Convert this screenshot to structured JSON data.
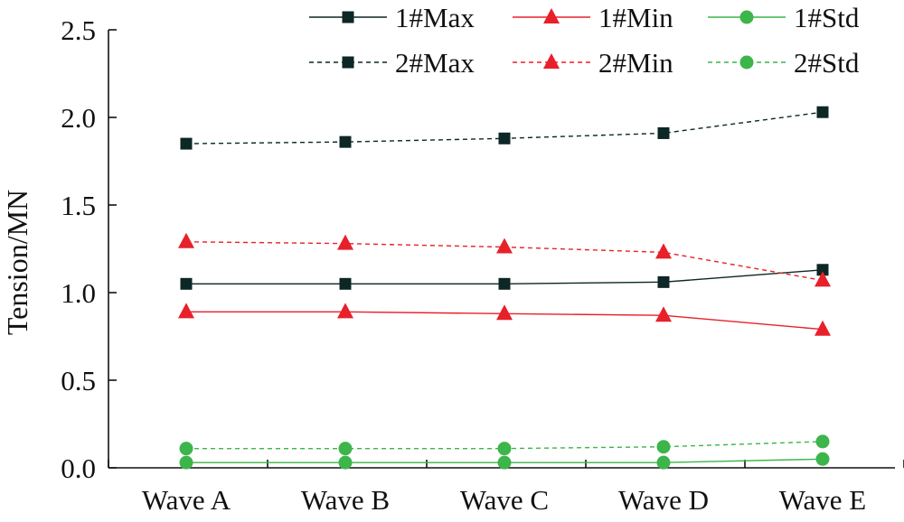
{
  "chart_data": {
    "type": "line",
    "title": "",
    "xlabel": "",
    "ylabel": "Tension/MN",
    "ylim": [
      0,
      2.5
    ],
    "yticks": [
      "0.0",
      "0.5",
      "1.0",
      "1.5",
      "2.0",
      "2.5"
    ],
    "categories": [
      "Wave A",
      "Wave B",
      "Wave C",
      "Wave D",
      "Wave E"
    ],
    "legend_position": "top-right",
    "series": [
      {
        "name": "1#Max",
        "values": [
          1.05,
          1.05,
          1.05,
          1.06,
          1.13
        ],
        "color": "#0d2626",
        "marker": "square",
        "dash": "solid"
      },
      {
        "name": "1#Min",
        "values": [
          0.89,
          0.89,
          0.88,
          0.87,
          0.79
        ],
        "color": "#e8202a",
        "marker": "triangle",
        "dash": "solid"
      },
      {
        "name": "1#Std",
        "values": [
          0.03,
          0.03,
          0.03,
          0.03,
          0.05
        ],
        "color": "#3cb54a",
        "marker": "circle",
        "dash": "solid"
      },
      {
        "name": "2#Max",
        "values": [
          1.85,
          1.86,
          1.88,
          1.91,
          2.03
        ],
        "color": "#0d2626",
        "marker": "square",
        "dash": "dashed"
      },
      {
        "name": "2#Min",
        "values": [
          1.29,
          1.28,
          1.26,
          1.23,
          1.07
        ],
        "color": "#e8202a",
        "marker": "triangle",
        "dash": "dashed"
      },
      {
        "name": "2#Std",
        "values": [
          0.11,
          0.11,
          0.11,
          0.12,
          0.15
        ],
        "color": "#3cb54a",
        "marker": "circle",
        "dash": "dashed"
      }
    ]
  }
}
